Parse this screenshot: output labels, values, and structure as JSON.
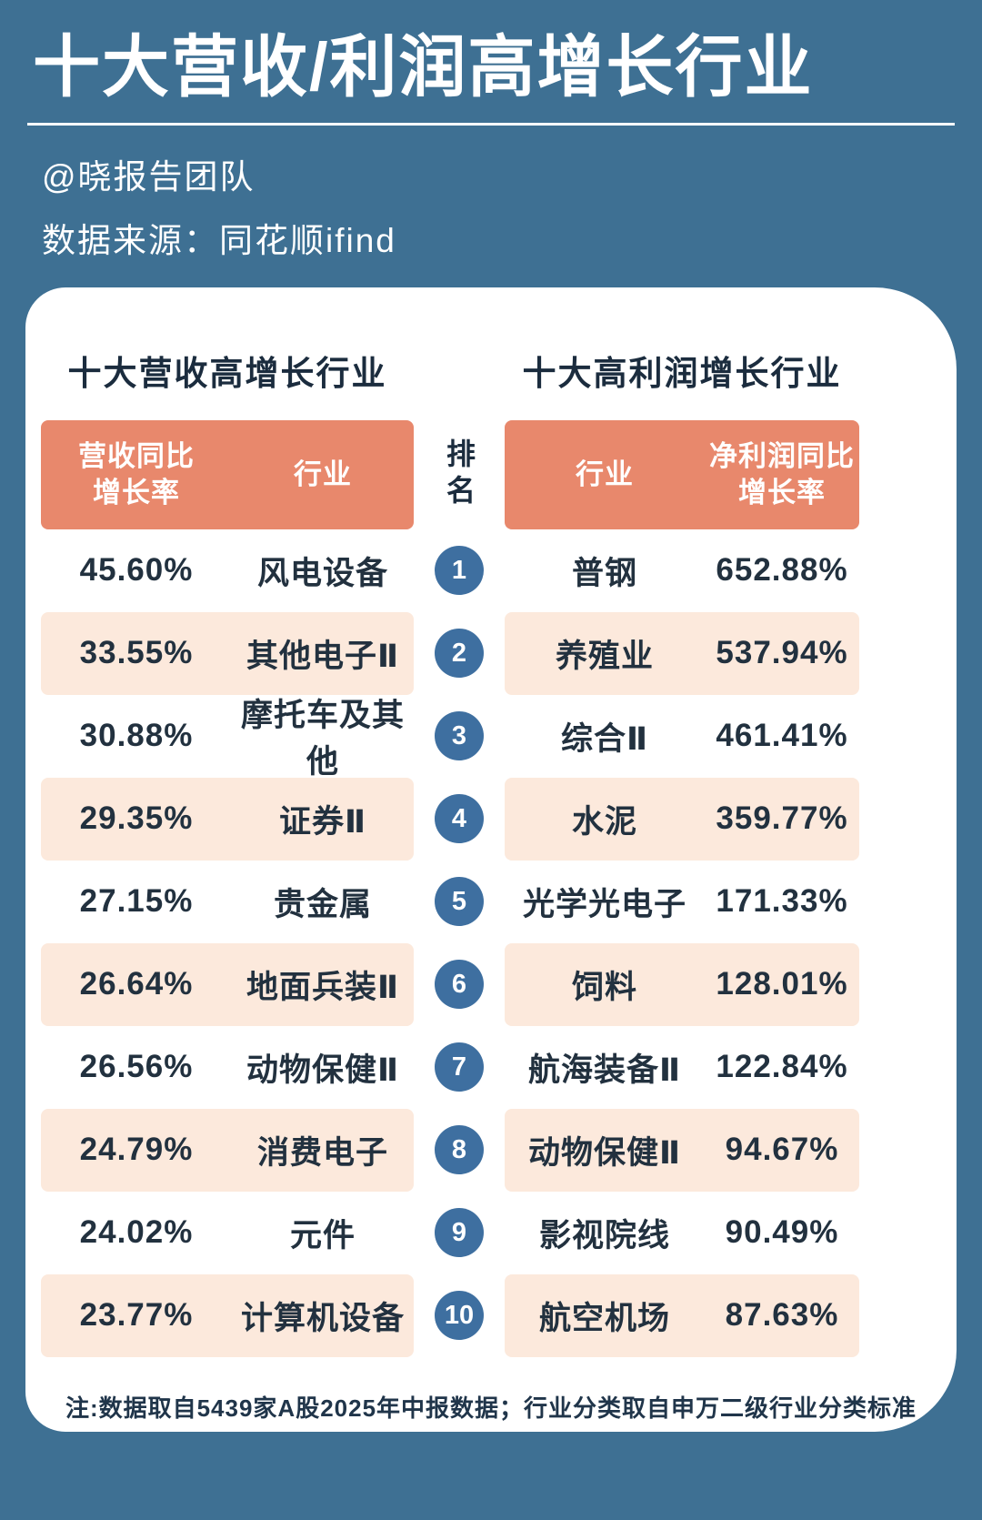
{
  "page": {
    "title": "十大营收/利润高增长行业",
    "credit": "@晓报告团队",
    "source": "数据来源：同花顺ifind",
    "footnote": "注:数据取自5439家A股2025年中报数据；行业分类取自申万二级行业分类标准"
  },
  "rank": {
    "header": "排名",
    "numbers": [
      "1",
      "2",
      "3",
      "4",
      "5",
      "6",
      "7",
      "8",
      "9",
      "10"
    ]
  },
  "left_table": {
    "section_title": "十大营收高增长行业",
    "headers": {
      "rate": "营收同比\n增长率",
      "industry": "行业"
    },
    "rows": [
      {
        "rate": "45.60%",
        "industry": "风电设备"
      },
      {
        "rate": "33.55%",
        "industry": "其他电子Ⅱ"
      },
      {
        "rate": "30.88%",
        "industry": "摩托车及其他"
      },
      {
        "rate": "29.35%",
        "industry": "证券Ⅱ"
      },
      {
        "rate": "27.15%",
        "industry": "贵金属"
      },
      {
        "rate": "26.64%",
        "industry": "地面兵装Ⅱ"
      },
      {
        "rate": "26.56%",
        "industry": "动物保健Ⅱ"
      },
      {
        "rate": "24.79%",
        "industry": "消费电子"
      },
      {
        "rate": "24.02%",
        "industry": "元件"
      },
      {
        "rate": "23.77%",
        "industry": "计算机设备"
      }
    ]
  },
  "right_table": {
    "section_title": "十大高利润增长行业",
    "headers": {
      "industry": "行业",
      "rate": "净利润同比\n增长率"
    },
    "rows": [
      {
        "industry": "普钢",
        "rate": "652.88%"
      },
      {
        "industry": "养殖业",
        "rate": "537.94%"
      },
      {
        "industry": "综合Ⅱ",
        "rate": "461.41%"
      },
      {
        "industry": "水泥",
        "rate": "359.77%"
      },
      {
        "industry": "光学光电子",
        "rate": "171.33%"
      },
      {
        "industry": "饲料",
        "rate": "128.01%"
      },
      {
        "industry": "航海装备Ⅱ",
        "rate": "122.84%"
      },
      {
        "industry": "动物保健Ⅱ",
        "rate": "94.67%"
      },
      {
        "industry": "影视院线",
        "rate": "90.49%"
      },
      {
        "industry": "航空机场",
        "rate": "87.63%"
      }
    ]
  },
  "colors": {
    "background": "#3E7093",
    "card": "#FFFFFF",
    "table_header": "#E8886C",
    "row_alt": "#FCE9DC",
    "rank_badge": "#3E6FA0",
    "text_dark": "#1B2C3E",
    "text_light": "#FFFFFF"
  },
  "chart_data": [
    {
      "type": "table",
      "title": "十大营收高增长行业",
      "columns": [
        "营收同比增长率",
        "行业"
      ],
      "rows": [
        [
          "45.60%",
          "风电设备"
        ],
        [
          "33.55%",
          "其他电子Ⅱ"
        ],
        [
          "30.88%",
          "摩托车及其他"
        ],
        [
          "29.35%",
          "证券Ⅱ"
        ],
        [
          "27.15%",
          "贵金属"
        ],
        [
          "26.64%",
          "地面兵装Ⅱ"
        ],
        [
          "26.56%",
          "动物保健Ⅱ"
        ],
        [
          "24.79%",
          "消费电子"
        ],
        [
          "24.02%",
          "元件"
        ],
        [
          "23.77%",
          "计算机设备"
        ]
      ]
    },
    {
      "type": "table",
      "title": "十大高利润增长行业",
      "columns": [
        "行业",
        "净利润同比增长率"
      ],
      "rows": [
        [
          "普钢",
          "652.88%"
        ],
        [
          "养殖业",
          "537.94%"
        ],
        [
          "综合Ⅱ",
          "461.41%"
        ],
        [
          "水泥",
          "359.77%"
        ],
        [
          "光学光电子",
          "171.33%"
        ],
        [
          "饲料",
          "128.01%"
        ],
        [
          "航海装备Ⅱ",
          "122.84%"
        ],
        [
          "动物保健Ⅱ",
          "94.67%"
        ],
        [
          "影视院线",
          "90.49%"
        ],
        [
          "航空机场",
          "87.63%"
        ]
      ]
    }
  ]
}
